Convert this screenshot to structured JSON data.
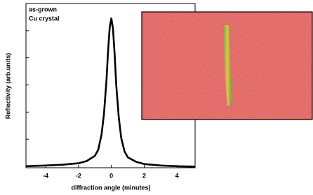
{
  "chart_data": {
    "type": "line",
    "annotation": [
      "as-grown",
      "Cu crystal"
    ],
    "xlabel": "diffraction angle (minutes)",
    "ylabel": "Reflectivity (arb.units)",
    "x": [
      -5.2,
      -4,
      -3,
      -2,
      -1.5,
      -1,
      -0.8,
      -0.6,
      -0.45,
      -0.3,
      -0.2,
      -0.1,
      0,
      0.1,
      0.2,
      0.3,
      0.45,
      0.6,
      0.8,
      1,
      1.5,
      2,
      3,
      4,
      5.1
    ],
    "series": [
      {
        "color": "#000000",
        "values": [
          0.01,
          0.015,
          0.02,
          0.03,
          0.045,
          0.08,
          0.12,
          0.22,
          0.36,
          0.58,
          0.78,
          0.94,
          1.0,
          0.93,
          0.76,
          0.55,
          0.34,
          0.2,
          0.11,
          0.07,
          0.04,
          0.025,
          0.015,
          0.01,
          0.008
        ]
      }
    ],
    "xlim": [
      -5.2,
      5.1
    ],
    "xticks": [
      -4,
      -2,
      0,
      2,
      4
    ],
    "ylim": [
      0,
      1.1
    ]
  }
}
